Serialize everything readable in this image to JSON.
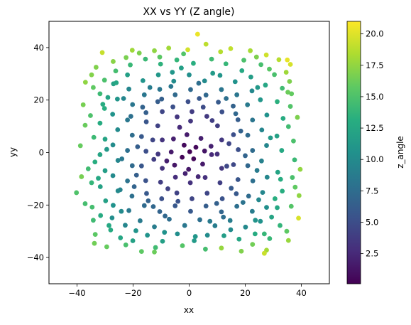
{
  "chart_data": {
    "type": "scatter",
    "title": "XX vs YY (Z angle)",
    "xlabel": "xx",
    "ylabel": "yy",
    "xlim": [
      -50,
      50
    ],
    "ylim": [
      -50,
      50
    ],
    "xticks": [
      -40,
      -20,
      0,
      20,
      40
    ],
    "yticks": [
      -40,
      -20,
      0,
      20,
      40
    ],
    "grid": false,
    "colormap": "viridis",
    "colorbar": {
      "label": "z_angle",
      "range": [
        0.1,
        21
      ],
      "ticks": [
        2.5,
        5.0,
        7.5,
        10.0,
        12.5,
        15.0,
        17.5,
        20.0
      ],
      "tick_labels": [
        "2.5",
        "5.0",
        "7.5",
        "10.0",
        "12.5",
        "15.0",
        "17.5",
        "20.0"
      ]
    },
    "points": [
      [
        3.0,
        45.1,
        20.4
      ],
      [
        -0.5,
        39.2,
        19.6
      ],
      [
        6.0,
        41.3,
        18.9
      ],
      [
        11.2,
        38.4,
        18.6
      ],
      [
        14.8,
        39.6,
        19.0
      ],
      [
        -7.3,
        39.8,
        18.0
      ],
      [
        -12.4,
        38.8,
        17.4
      ],
      [
        -17.8,
        37.9,
        16.8
      ],
      [
        -22.5,
        36.2,
        16.7
      ],
      [
        -27.1,
        34.7,
        17.2
      ],
      [
        -31.0,
        38.1,
        19.2
      ],
      [
        -33.2,
        32.5,
        16.9
      ],
      [
        21.8,
        38.8,
        18.2
      ],
      [
        27.5,
        37.2,
        19.5
      ],
      [
        32.0,
        35.4,
        18.7
      ],
      [
        35.0,
        35.3,
        20.3
      ],
      [
        36.1,
        33.6,
        19.7
      ],
      [
        34.6,
        30.6,
        17.9
      ],
      [
        35.8,
        27.1,
        16.8
      ],
      [
        36.5,
        22.4,
        15.9
      ],
      [
        36.1,
        17.6,
        15.2
      ],
      [
        -37.8,
        18.2,
        16.6
      ],
      [
        -35.2,
        14.1,
        15.0
      ],
      [
        -37.1,
        10.4,
        16.1
      ],
      [
        -34.0,
        5.8,
        14.2
      ],
      [
        -33.6,
        -3.6,
        13.1
      ],
      [
        -34.8,
        -11.5,
        13.8
      ],
      [
        -40.2,
        -15.3,
        15.1
      ],
      [
        -37.1,
        -19.5,
        14.6
      ],
      [
        -34.2,
        -25.8,
        14.3
      ],
      [
        -33.5,
        -31.2,
        15.6
      ],
      [
        -33.8,
        -34.6,
        16.4
      ],
      [
        -29.4,
        -35.9,
        16.0
      ],
      [
        -17.0,
        -37.7,
        15.7
      ],
      [
        -12.4,
        -37.9,
        16.2
      ],
      [
        -2.4,
        -35.5,
        15.3
      ],
      [
        11.5,
        -36.4,
        17.6
      ],
      [
        22.6,
        -35.0,
        16.4
      ],
      [
        27.6,
        -37.2,
        18.1
      ],
      [
        26.8,
        -38.4,
        19.3
      ],
      [
        35.4,
        -33.5,
        17.7
      ],
      [
        39.0,
        -25.0,
        19.8
      ],
      [
        39.2,
        -16.4,
        17.4
      ],
      [
        36.8,
        -9.5,
        14.8
      ],
      [
        37.6,
        -2.8,
        14.1
      ],
      [
        37.2,
        4.4,
        14.9
      ],
      [
        35.4,
        9.9,
        14.4
      ],
      [
        34.8,
        -30.0,
        15.7
      ],
      [
        -28.0,
        -29.5,
        12.8
      ],
      [
        -24.5,
        -32.5,
        12.4
      ],
      [
        -20.1,
        -33.6,
        12.0
      ],
      [
        -14.9,
        -31.5,
        10.7
      ],
      [
        -9.5,
        -33.8,
        11.8
      ],
      [
        -4.2,
        -31.0,
        10.3
      ],
      [
        1.8,
        -33.6,
        11.4
      ],
      [
        6.5,
        -31.5,
        10.1
      ],
      [
        12.4,
        -31.7,
        11.6
      ],
      [
        17.8,
        -33.0,
        12.4
      ],
      [
        23.5,
        -31.0,
        12.9
      ],
      [
        28.7,
        -32.8,
        14.0
      ],
      [
        32.4,
        -27.8,
        13.7
      ],
      [
        31.4,
        -21.0,
        12.5
      ],
      [
        33.2,
        -14.7,
        13.1
      ],
      [
        31.6,
        -7.5,
        12.2
      ],
      [
        33.0,
        0.8,
        12.6
      ],
      [
        31.3,
        6.3,
        12.0
      ],
      [
        33.5,
        13.0,
        12.9
      ],
      [
        31.4,
        19.4,
        13.3
      ],
      [
        33.2,
        24.5,
        14.4
      ],
      [
        30.4,
        29.7,
        14.8
      ],
      [
        25.6,
        33.5,
        14.7
      ],
      [
        19.5,
        35.2,
        14.9
      ],
      [
        13.1,
        33.8,
        13.9
      ],
      [
        8.0,
        35.6,
        14.3
      ],
      [
        1.5,
        34.0,
        13.2
      ],
      [
        -4.4,
        35.3,
        13.8
      ],
      [
        -10.2,
        33.7,
        13.5
      ],
      [
        -15.6,
        35.6,
        14.1
      ],
      [
        -21.0,
        33.4,
        14.0
      ],
      [
        -26.2,
        31.1,
        14.6
      ],
      [
        -30.2,
        27.6,
        14.9
      ],
      [
        -31.8,
        22.4,
        14.2
      ],
      [
        -30.2,
        16.8,
        13.2
      ],
      [
        -31.8,
        11.2,
        12.9
      ],
      [
        -30.0,
        5.1,
        12.2
      ],
      [
        -31.8,
        -0.8,
        12.3
      ],
      [
        -30.0,
        -6.9,
        11.6
      ],
      [
        -31.7,
        -13.0,
        12.0
      ],
      [
        -29.8,
        -18.4,
        11.9
      ],
      [
        -31.6,
        -24.0,
        12.8
      ],
      [
        -27.5,
        -24.9,
        10.2
      ],
      [
        -22.8,
        -27.7,
        9.6
      ],
      [
        -17.5,
        -26.0,
        8.6
      ],
      [
        -12.4,
        -28.3,
        8.9
      ],
      [
        -7.1,
        -25.4,
        7.6
      ],
      [
        -1.6,
        -27.8,
        8.4
      ],
      [
        3.8,
        -25.6,
        7.8
      ],
      [
        9.2,
        -27.9,
        8.8
      ],
      [
        14.6,
        -25.9,
        8.9
      ],
      [
        20.1,
        -28.4,
        9.9
      ],
      [
        25.4,
        -26.2,
        10.6
      ],
      [
        27.6,
        -20.9,
        10.4
      ],
      [
        26.2,
        -15.2,
        9.6
      ],
      [
        27.8,
        -9.4,
        9.7
      ],
      [
        25.8,
        -3.2,
        9.2
      ],
      [
        27.6,
        2.7,
        9.6
      ],
      [
        25.9,
        8.6,
        9.5
      ],
      [
        27.7,
        14.3,
        10.6
      ],
      [
        25.4,
        20.1,
        11.0
      ],
      [
        27.2,
        25.7,
        12.4
      ],
      [
        22.0,
        28.8,
        11.6
      ],
      [
        16.4,
        27.0,
        10.6
      ],
      [
        11.0,
        29.4,
        10.9
      ],
      [
        5.5,
        27.3,
        10.0
      ],
      [
        0.0,
        29.6,
        10.4
      ],
      [
        -5.5,
        27.2,
        10.1
      ],
      [
        -11.0,
        29.6,
        11.1
      ],
      [
        -16.5,
        27.4,
        10.8
      ],
      [
        -22.0,
        29.6,
        11.8
      ],
      [
        -27.0,
        26.2,
        12.0
      ],
      [
        -25.6,
        20.4,
        10.9
      ],
      [
        -27.3,
        14.6,
        10.7
      ],
      [
        -25.5,
        8.7,
        10.0
      ],
      [
        -27.2,
        2.9,
        10.1
      ],
      [
        -25.4,
        -3.0,
        9.6
      ],
      [
        -27.2,
        -8.8,
        10.0
      ],
      [
        -25.4,
        -14.6,
        9.9
      ],
      [
        -27.1,
        -20.1,
        10.6
      ],
      [
        -21.5,
        -22.1,
        8.5
      ],
      [
        -16.0,
        -20.2,
        7.3
      ],
      [
        -10.5,
        -22.5,
        6.8
      ],
      [
        -5.0,
        -20.3,
        5.8
      ],
      [
        0.5,
        -22.4,
        5.9
      ],
      [
        6.0,
        -20.4,
        6.2
      ],
      [
        11.5,
        -22.6,
        6.9
      ],
      [
        17.0,
        -20.5,
        7.7
      ],
      [
        22.5,
        -22.4,
        8.8
      ],
      [
        21.2,
        -16.6,
        7.4
      ],
      [
        22.7,
        -10.8,
        7.7
      ],
      [
        20.9,
        -5.0,
        7.0
      ],
      [
        22.6,
        0.8,
        7.4
      ],
      [
        20.9,
        6.6,
        7.3
      ],
      [
        22.6,
        12.4,
        8.2
      ],
      [
        20.8,
        18.2,
        8.6
      ],
      [
        22.4,
        23.5,
        9.8
      ],
      [
        17.0,
        22.0,
        8.3
      ],
      [
        11.5,
        24.0,
        8.2
      ],
      [
        6.0,
        21.9,
        7.1
      ],
      [
        0.5,
        24.0,
        7.2
      ],
      [
        -5.0,
        22.0,
        7.3
      ],
      [
        -10.5,
        24.1,
        8.2
      ],
      [
        -16.0,
        22.0,
        8.3
      ],
      [
        -21.5,
        24.2,
        9.6
      ],
      [
        -20.2,
        18.3,
        8.3
      ],
      [
        -22.0,
        12.4,
        8.4
      ],
      [
        -20.3,
        6.6,
        7.5
      ],
      [
        -22.0,
        0.8,
        7.7
      ],
      [
        -20.3,
        -5.0,
        7.3
      ],
      [
        -22.0,
        -10.8,
        8.0
      ],
      [
        -20.4,
        -16.6,
        7.8
      ],
      [
        -15.2,
        -15.6,
        5.9
      ],
      [
        -9.8,
        -17.6,
        5.2
      ],
      [
        -4.4,
        -15.4,
        4.2
      ],
      [
        1.0,
        -17.6,
        4.4
      ],
      [
        6.4,
        -15.5,
        4.5
      ],
      [
        11.8,
        -17.6,
        5.4
      ],
      [
        16.8,
        -15.7,
        5.9
      ],
      [
        17.4,
        -10.3,
        5.6
      ],
      [
        15.8,
        -4.6,
        4.6
      ],
      [
        17.5,
        1.1,
        5.1
      ],
      [
        15.8,
        6.8,
        5.1
      ],
      [
        17.4,
        12.5,
        6.2
      ],
      [
        15.7,
        17.7,
        6.6
      ],
      [
        10.4,
        19.2,
        6.0
      ],
      [
        5.0,
        17.3,
        4.9
      ],
      [
        -0.4,
        19.4,
        5.1
      ],
      [
        -5.8,
        17.4,
        5.2
      ],
      [
        -11.2,
        19.4,
        6.2
      ],
      [
        -16.6,
        17.3,
        6.7
      ],
      [
        -15.3,
        11.7,
        5.6
      ],
      [
        -17.0,
        6.1,
        5.9
      ],
      [
        -15.4,
        0.5,
        5.1
      ],
      [
        -17.0,
        -5.1,
        5.7
      ],
      [
        -15.5,
        -10.7,
        5.4
      ],
      [
        -10.2,
        -11.3,
        3.9
      ],
      [
        -4.9,
        -9.4,
        2.8
      ],
      [
        0.4,
        -11.5,
        3.1
      ],
      [
        5.7,
        -9.5,
        3.0
      ],
      [
        11.0,
        -11.5,
        4.0
      ],
      [
        11.6,
        -6.0,
        3.4
      ],
      [
        10.0,
        -0.6,
        2.9
      ],
      [
        11.6,
        4.8,
        3.5
      ],
      [
        10.1,
        10.2,
        3.9
      ],
      [
        11.7,
        15.5,
        5.2
      ],
      [
        6.3,
        13.8,
        3.6
      ],
      [
        1.0,
        15.6,
        3.8
      ],
      [
        -4.3,
        13.6,
        3.4
      ],
      [
        -9.6,
        15.6,
        4.5
      ],
      [
        -11.2,
        10.2,
        4.2
      ],
      [
        -9.6,
        4.8,
        3.2
      ],
      [
        -11.1,
        -0.6,
        3.5
      ],
      [
        -9.6,
        -6.0,
        3.1
      ],
      [
        -5.2,
        -4.8,
        1.4
      ],
      [
        -0.2,
        -6.4,
        1.5
      ],
      [
        4.8,
        -4.4,
        1.6
      ],
      [
        5.5,
        0.6,
        1.3
      ],
      [
        4.2,
        5.4,
        1.9
      ],
      [
        -0.8,
        6.8,
        1.7
      ],
      [
        -5.6,
        5.2,
        1.9
      ],
      [
        -6.4,
        0.2,
        1.6
      ],
      [
        -2.5,
        -1.8,
        0.4
      ],
      [
        1.6,
        -2.4,
        0.5
      ],
      [
        2.4,
        2.0,
        0.6
      ],
      [
        -1.8,
        2.8,
        0.7
      ],
      [
        0.2,
        0.3,
        0.2
      ],
      [
        -8.0,
        -3.2,
        1.9
      ],
      [
        7.8,
        2.4,
        2.0
      ],
      [
        -3.4,
        9.6,
        2.6
      ],
      [
        3.2,
        -9.2,
        2.4
      ],
      [
        -13.0,
        4.8,
        4.4
      ],
      [
        13.4,
        -5.2,
        4.6
      ],
      [
        -7.6,
        -13.8,
        4.1
      ],
      [
        8.2,
        12.2,
        4.0
      ],
      [
        -18.8,
        -8.6,
        6.4
      ],
      [
        18.4,
        8.2,
        6.6
      ],
      [
        -24.0,
        -2.4,
        8.4
      ],
      [
        24.2,
        -6.8,
        8.7
      ],
      [
        -8.6,
        -24.2,
        7.0
      ],
      [
        12.2,
        -24.6,
        7.6
      ],
      [
        -14.0,
        24.8,
        8.8
      ],
      [
        3.4,
        26.4,
        7.6
      ],
      [
        -29.0,
        21.0,
        12.3
      ],
      [
        29.4,
        -24.6,
        12.2
      ],
      [
        -28.6,
        -27.8,
        12.6
      ],
      [
        28.6,
        31.8,
        15.5
      ],
      [
        14.8,
        -29.4,
        10.0
      ],
      [
        -19.0,
        -29.8,
        10.8
      ],
      [
        -6.0,
        30.6,
        11.0
      ],
      [
        18.8,
        31.2,
        12.6
      ],
      [
        -36.0,
        -6.2,
        14.4
      ],
      [
        36.4,
        -20.5,
        15.3
      ],
      [
        -10.5,
        36.4,
        15.6
      ],
      [
        -22.6,
        -35.2,
        14.8
      ],
      [
        5.8,
        -36.8,
        14.6
      ],
      [
        -38.8,
        2.6,
        16.0
      ],
      [
        38.6,
        13.4,
        16.8
      ],
      [
        -2.0,
        37.6,
        15.2
      ],
      [
        9.8,
        -19.4,
        6.5
      ],
      [
        -19.6,
        -13.0,
        6.8
      ],
      [
        -12.8,
        -20.6,
        7.0
      ],
      [
        19.2,
        -19.0,
        8.0
      ],
      [
        13.2,
        20.6,
        7.8
      ],
      [
        -20.8,
        13.8,
        7.8
      ],
      [
        -24.6,
        -14.2,
        9.3
      ],
      [
        24.8,
        -18.0,
        9.8
      ],
      [
        -6.5,
        25.2,
        8.4
      ],
      [
        7.4,
        -26.2,
        8.6
      ],
      [
        -26.0,
        26.6,
        12.4
      ],
      [
        26.8,
        -31.0,
        13.9
      ],
      [
        -34.8,
        29.6,
        17.0
      ],
      [
        -34.2,
        24.8,
        15.8
      ],
      [
        -38.4,
        -9.2,
        16.6
      ],
      [
        39.6,
        -6.4,
        17.5
      ],
      [
        -20.3,
        39.0,
        17.9
      ],
      [
        24.0,
        36.4,
        16.8
      ],
      [
        -12.0,
        -36.2,
        14.4
      ],
      [
        18.6,
        -37.6,
        16.9
      ],
      [
        8.0,
        -0.8,
        2.5
      ],
      [
        -1.4,
        -8.0,
        2.1
      ],
      [
        0.5,
        12.0,
        3.4
      ],
      [
        -12.6,
        -2.6,
        3.9
      ],
      [
        14.2,
        3.4,
        4.5
      ],
      [
        -4.0,
        -18.6,
        5.4
      ],
      [
        3.6,
        20.6,
        5.8
      ],
      [
        -18.4,
        2.2,
        6.3
      ],
      [
        20.0,
        -1.2,
        6.8
      ],
      [
        -9.8,
        20.4,
        6.4
      ],
      [
        15.0,
        -13.6,
        6.0
      ],
      [
        -14.6,
        -18.4,
        6.6
      ],
      [
        16.6,
        14.8,
        7.0
      ],
      [
        -15.4,
        15.2,
        6.4
      ],
      [
        -23.4,
        20.6,
        9.6
      ],
      [
        23.6,
        -25.8,
        10.8
      ],
      [
        -24.2,
        -22.4,
        10.0
      ],
      [
        24.4,
        24.8,
        11.2
      ],
      [
        2.2,
        -32.0,
        11.0
      ],
      [
        -2.8,
        32.2,
        11.8
      ],
      [
        -32.4,
        -9.8,
        12.6
      ],
      [
        32.6,
        -10.2,
        13.0
      ],
      [
        29.0,
        5.6,
        11.4
      ],
      [
        -29.4,
        1.2,
        11.2
      ],
      [
        8.4,
        30.2,
        11.4
      ],
      [
        -8.8,
        -30.4,
        10.6
      ],
      [
        30.6,
        -17.6,
        13.2
      ],
      [
        -30.8,
        18.4,
        13.0
      ],
      [
        -34.6,
        -20.8,
        14.6
      ],
      [
        35.2,
        23.0,
        16.2
      ],
      [
        -37.0,
        26.8,
        17.4
      ],
      [
        37.8,
        -13.2,
        15.8
      ]
    ]
  }
}
